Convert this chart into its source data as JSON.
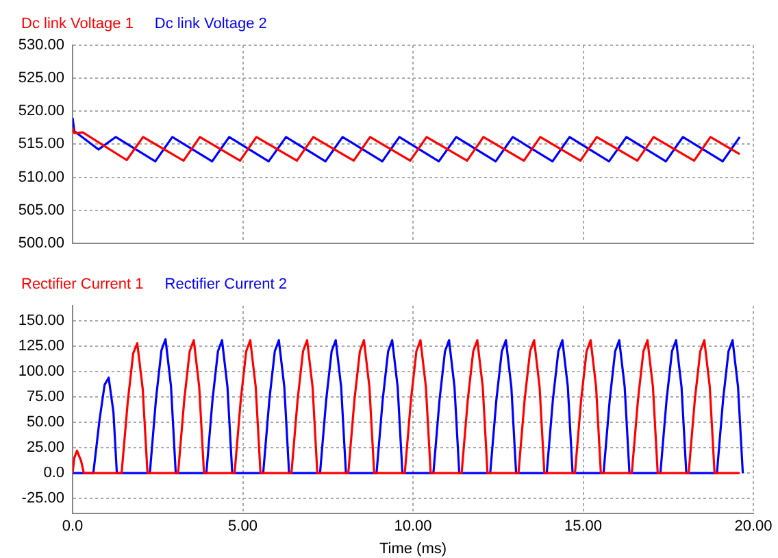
{
  "chart_data": [
    {
      "type": "line",
      "legend": "top left",
      "grid": true,
      "tick_labels": "y",
      "xlim": [
        0,
        20
      ],
      "xticks": [
        0,
        5,
        10,
        15,
        20
      ],
      "ylim": [
        500,
        530
      ],
      "yticks": [
        {
          "value": 500,
          "label": "500.00"
        },
        {
          "value": 505,
          "label": "505.00"
        },
        {
          "value": 510,
          "label": "510.00"
        },
        {
          "value": 515,
          "label": "515.00"
        },
        {
          "value": 520,
          "label": "520.00"
        },
        {
          "value": 525,
          "label": "525.00"
        },
        {
          "value": 530,
          "label": "530.00"
        }
      ],
      "series": [
        {
          "name": "Dc link Voltage 1",
          "color": "#ff0000",
          "x": [
            0,
            0.05,
            0.3,
            1.59,
            2.07,
            3.26,
            3.74,
            4.92,
            5.4,
            6.59,
            7.07,
            8.26,
            8.74,
            9.92,
            10.4,
            11.59,
            12.07,
            13.26,
            13.74,
            14.92,
            15.4,
            16.59,
            17.07,
            18.26,
            18.74,
            19.6
          ],
          "values": [
            517.5,
            516.7,
            516.8,
            512.6,
            516.1,
            512.5,
            516.1,
            512.5,
            516.1,
            512.5,
            516.1,
            512.5,
            516.1,
            512.5,
            516.1,
            512.5,
            516.1,
            512.5,
            516.1,
            512.5,
            516.1,
            512.5,
            516.1,
            512.5,
            516.1,
            513.5
          ]
        },
        {
          "name": "Dc link Voltage 2",
          "color": "#0000ff",
          "x": [
            0,
            0.05,
            0.76,
            1.27,
            2.43,
            2.93,
            4.1,
            4.6,
            5.76,
            6.27,
            7.43,
            7.93,
            9.1,
            9.6,
            10.76,
            11.27,
            12.43,
            12.93,
            14.1,
            14.6,
            15.76,
            16.27,
            17.43,
            17.93,
            19.1,
            19.6
          ],
          "values": [
            519,
            517,
            514.2,
            516.1,
            512.4,
            516.1,
            512.4,
            516.1,
            512.4,
            516.1,
            512.4,
            516.1,
            512.4,
            516.1,
            512.4,
            516.1,
            512.4,
            516.1,
            512.4,
            516.1,
            512.4,
            516.1,
            512.4,
            516.1,
            512.4,
            516.1
          ]
        }
      ]
    },
    {
      "type": "line",
      "legend": "top left",
      "grid": true,
      "xlabel": "Time (ms)",
      "xlim": [
        0,
        20
      ],
      "xticks": [
        {
          "value": 0,
          "label": "0.0"
        },
        {
          "value": 5,
          "label": "5.00"
        },
        {
          "value": 10,
          "label": "10.00"
        },
        {
          "value": 15,
          "label": "15.00"
        },
        {
          "value": 20,
          "label": "20.00"
        }
      ],
      "ylim": [
        -40,
        165
      ],
      "yticks": [
        {
          "value": -25,
          "label": "-25.00"
        },
        {
          "value": 0,
          "label": "0.0"
        },
        {
          "value": 25,
          "label": "25.00"
        },
        {
          "value": 50,
          "label": "50.00"
        },
        {
          "value": 75,
          "label": "75.00"
        },
        {
          "value": 100,
          "label": "100.00"
        },
        {
          "value": 125,
          "label": "125.00"
        },
        {
          "value": 150,
          "label": "150.00"
        }
      ],
      "series": [
        {
          "name": "Rectifier Current 1",
          "color": "#ff0000",
          "x": [
            0,
            0.05,
            0.13,
            0.25,
            0.33,
            1.44,
            1.62,
            1.78,
            1.9,
            2.06,
            2.2,
            3.1,
            3.28,
            3.44,
            3.56,
            3.72,
            3.86,
            4.76,
            4.94,
            5.1,
            5.22,
            5.38,
            5.52,
            6.43,
            6.61,
            6.77,
            6.89,
            7.05,
            7.19,
            8.1,
            8.28,
            8.44,
            8.56,
            8.72,
            8.86,
            9.76,
            9.94,
            10.1,
            10.22,
            10.38,
            10.52,
            11.43,
            11.61,
            11.77,
            11.89,
            12.05,
            12.19,
            13.1,
            13.28,
            13.44,
            13.56,
            13.72,
            13.86,
            14.76,
            14.94,
            15.1,
            15.22,
            15.38,
            15.52,
            16.43,
            16.61,
            16.77,
            16.89,
            17.05,
            17.19,
            18.1,
            18.28,
            18.44,
            18.56,
            18.72,
            18.86,
            19.6
          ],
          "values": [
            0,
            15,
            22,
            12,
            0,
            0,
            70,
            118,
            128,
            83,
            0,
            0,
            72,
            120,
            131,
            85,
            0,
            0,
            72,
            120,
            131,
            85,
            0,
            0,
            72,
            120,
            131,
            85,
            0,
            0,
            72,
            120,
            131,
            85,
            0,
            0,
            72,
            120,
            131,
            85,
            0,
            0,
            72,
            120,
            131,
            85,
            0,
            0,
            72,
            120,
            131,
            85,
            0,
            0,
            72,
            120,
            131,
            85,
            0,
            0,
            72,
            120,
            131,
            85,
            0,
            0,
            72,
            120,
            131,
            85,
            0,
            0
          ]
        },
        {
          "name": "Rectifier Current 2",
          "color": "#0000ff",
          "x": [
            0,
            0.61,
            0.79,
            0.94,
            1.06,
            1.2,
            1.3,
            2.27,
            2.45,
            2.61,
            2.73,
            2.89,
            3.03,
            3.93,
            4.11,
            4.27,
            4.39,
            4.55,
            4.69,
            5.6,
            5.78,
            5.94,
            6.06,
            6.22,
            6.36,
            7.27,
            7.45,
            7.61,
            7.73,
            7.89,
            8.03,
            8.93,
            9.11,
            9.27,
            9.39,
            9.55,
            9.69,
            10.6,
            10.78,
            10.94,
            11.06,
            11.22,
            11.36,
            12.27,
            12.45,
            12.61,
            12.73,
            12.89,
            13.03,
            13.93,
            14.11,
            14.27,
            14.39,
            14.55,
            14.69,
            15.6,
            15.78,
            15.94,
            16.06,
            16.22,
            16.36,
            17.27,
            17.45,
            17.61,
            17.73,
            17.89,
            18.03,
            18.93,
            19.11,
            19.27,
            19.39,
            19.55,
            19.69
          ],
          "values": [
            0,
            0,
            52,
            87,
            94,
            60,
            0,
            0,
            73,
            121,
            132,
            86,
            0,
            0,
            72,
            120,
            131,
            85,
            0,
            0,
            72,
            120,
            131,
            85,
            0,
            0,
            72,
            120,
            131,
            85,
            0,
            0,
            72,
            120,
            131,
            85,
            0,
            0,
            72,
            120,
            131,
            85,
            0,
            0,
            72,
            120,
            131,
            85,
            0,
            0,
            72,
            120,
            131,
            85,
            0,
            0,
            72,
            120,
            131,
            85,
            0,
            0,
            72,
            120,
            131,
            85,
            0,
            0,
            72,
            120,
            131,
            85,
            0
          ]
        }
      ]
    }
  ]
}
